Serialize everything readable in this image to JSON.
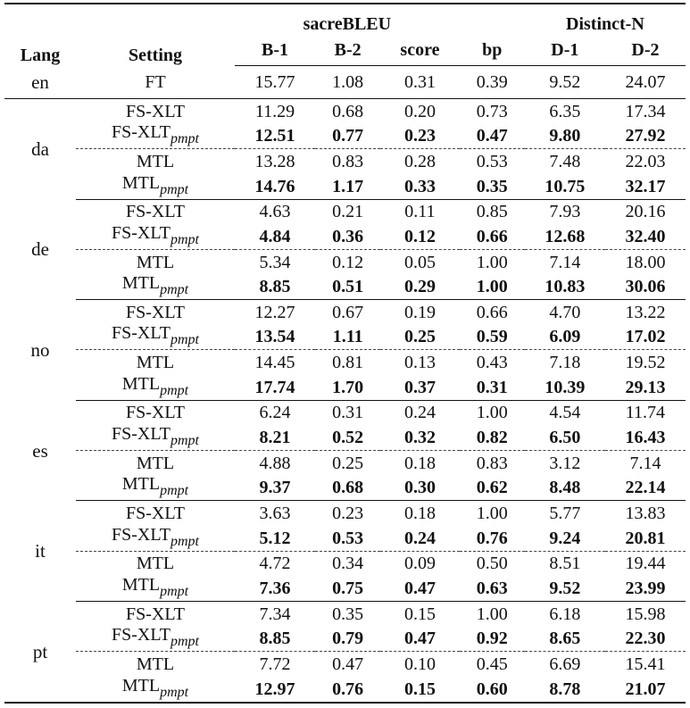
{
  "header": {
    "lang": "Lang",
    "setting": "Setting",
    "sacrebleu": "sacreBLEU",
    "distinct": "Distinct-N",
    "cols": [
      "B-1",
      "B-2",
      "score",
      "bp",
      "D-1",
      "D-2"
    ]
  },
  "ft": {
    "lang": "en",
    "setting": "FT",
    "values": [
      "15.77",
      "1.08",
      "0.31",
      "0.39",
      "9.52",
      "24.07"
    ]
  },
  "groups": [
    {
      "lang": "da",
      "rows": [
        {
          "base": "FS-XLT",
          "sub": "",
          "values": [
            "11.29",
            "0.68",
            "0.20",
            "0.73",
            "6.35",
            "17.34"
          ]
        },
        {
          "base": "FS-XLT",
          "sub": "pmpt",
          "values": [
            "12.51",
            "0.77",
            "0.23",
            "0.47",
            "9.80",
            "27.92"
          ]
        },
        {
          "base": "MTL",
          "sub": "",
          "values": [
            "13.28",
            "0.83",
            "0.28",
            "0.53",
            "7.48",
            "22.03"
          ]
        },
        {
          "base": "MTL",
          "sub": "pmpt",
          "values": [
            "14.76",
            "1.17",
            "0.33",
            "0.35",
            "10.75",
            "32.17"
          ]
        }
      ]
    },
    {
      "lang": "de",
      "rows": [
        {
          "base": "FS-XLT",
          "sub": "",
          "values": [
            "4.63",
            "0.21",
            "0.11",
            "0.85",
            "7.93",
            "20.16"
          ]
        },
        {
          "base": "FS-XLT",
          "sub": "pmpt",
          "values": [
            "4.84",
            "0.36",
            "0.12",
            "0.66",
            "12.68",
            "32.40"
          ]
        },
        {
          "base": "MTL",
          "sub": "",
          "values": [
            "5.34",
            "0.12",
            "0.05",
            "1.00",
            "7.14",
            "18.00"
          ]
        },
        {
          "base": "MTL",
          "sub": "pmpt",
          "values": [
            "8.85",
            "0.51",
            "0.29",
            "1.00",
            "10.83",
            "30.06"
          ]
        }
      ]
    },
    {
      "lang": "no",
      "rows": [
        {
          "base": "FS-XLT",
          "sub": "",
          "values": [
            "12.27",
            "0.67",
            "0.19",
            "0.66",
            "4.70",
            "13.22"
          ]
        },
        {
          "base": "FS-XLT",
          "sub": "pmpt",
          "values": [
            "13.54",
            "1.11",
            "0.25",
            "0.59",
            "6.09",
            "17.02"
          ]
        },
        {
          "base": "MTL",
          "sub": "",
          "values": [
            "14.45",
            "0.81",
            "0.13",
            "0.43",
            "7.18",
            "19.52"
          ]
        },
        {
          "base": "MTL",
          "sub": "pmpt",
          "values": [
            "17.74",
            "1.70",
            "0.37",
            "0.31",
            "10.39",
            "29.13"
          ]
        }
      ]
    },
    {
      "lang": "es",
      "rows": [
        {
          "base": "FS-XLT",
          "sub": "",
          "values": [
            "6.24",
            "0.31",
            "0.24",
            "1.00",
            "4.54",
            "11.74"
          ]
        },
        {
          "base": "FS-XLT",
          "sub": "pmpt",
          "values": [
            "8.21",
            "0.52",
            "0.32",
            "0.82",
            "6.50",
            "16.43"
          ]
        },
        {
          "base": "MTL",
          "sub": "",
          "values": [
            "4.88",
            "0.25",
            "0.18",
            "0.83",
            "3.12",
            "7.14"
          ]
        },
        {
          "base": "MTL",
          "sub": "pmpt",
          "values": [
            "9.37",
            "0.68",
            "0.30",
            "0.62",
            "8.48",
            "22.14"
          ]
        }
      ]
    },
    {
      "lang": "it",
      "rows": [
        {
          "base": "FS-XLT",
          "sub": "",
          "values": [
            "3.63",
            "0.23",
            "0.18",
            "1.00",
            "5.77",
            "13.83"
          ]
        },
        {
          "base": "FS-XLT",
          "sub": "pmpt",
          "values": [
            "5.12",
            "0.53",
            "0.24",
            "0.76",
            "9.24",
            "20.81"
          ]
        },
        {
          "base": "MTL",
          "sub": "",
          "values": [
            "4.72",
            "0.34",
            "0.09",
            "0.50",
            "8.51",
            "19.44"
          ]
        },
        {
          "base": "MTL",
          "sub": "pmpt",
          "values": [
            "7.36",
            "0.75",
            "0.47",
            "0.63",
            "9.52",
            "23.99"
          ]
        }
      ]
    },
    {
      "lang": "pt",
      "rows": [
        {
          "base": "FS-XLT",
          "sub": "",
          "values": [
            "7.34",
            "0.35",
            "0.15",
            "1.00",
            "6.18",
            "15.98"
          ]
        },
        {
          "base": "FS-XLT",
          "sub": "pmpt",
          "values": [
            "8.85",
            "0.79",
            "0.47",
            "0.92",
            "8.65",
            "22.30"
          ]
        },
        {
          "base": "MTL",
          "sub": "",
          "values": [
            "7.72",
            "0.47",
            "0.10",
            "0.45",
            "6.69",
            "15.41"
          ]
        },
        {
          "base": "MTL",
          "sub": "pmpt",
          "values": [
            "12.97",
            "0.76",
            "0.15",
            "0.60",
            "8.78",
            "21.07"
          ]
        }
      ]
    }
  ]
}
